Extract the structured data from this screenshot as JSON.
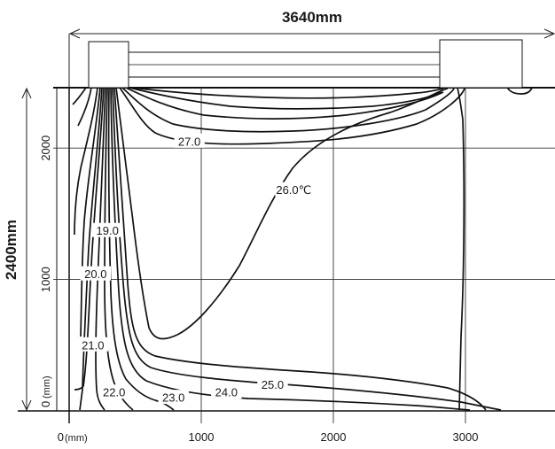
{
  "dimensions": {
    "width_label": "3640mm",
    "height_label": "2400mm"
  },
  "x_axis": {
    "ticks": [
      {
        "value": 0,
        "label": "0",
        "unit": "(mm)"
      },
      {
        "value": 1000,
        "label": "1000"
      },
      {
        "value": 2000,
        "label": "2000"
      },
      {
        "value": 3000,
        "label": "3000"
      }
    ]
  },
  "y_axis": {
    "ticks": [
      {
        "value": 0,
        "label": "0",
        "unit": "(mm)"
      },
      {
        "value": 1000,
        "label": "1000"
      },
      {
        "value": 2000,
        "label": "2000"
      }
    ]
  },
  "contour_labels": [
    {
      "text": "27.0",
      "x": 910,
      "y": 2050
    },
    {
      "text": "26.0℃",
      "x": 1700,
      "y": 1680
    },
    {
      "text": "19.0",
      "x": 290,
      "y": 1370
    },
    {
      "text": "20.0",
      "x": 200,
      "y": 1040
    },
    {
      "text": "21.0",
      "x": 180,
      "y": 500
    },
    {
      "text": "25.0",
      "x": 1540,
      "y": 200
    },
    {
      "text": "24.0",
      "x": 1190,
      "y": 140
    },
    {
      "text": "23.0",
      "x": 790,
      "y": 100
    },
    {
      "text": "22.0",
      "x": 340,
      "y": 140
    }
  ]
}
